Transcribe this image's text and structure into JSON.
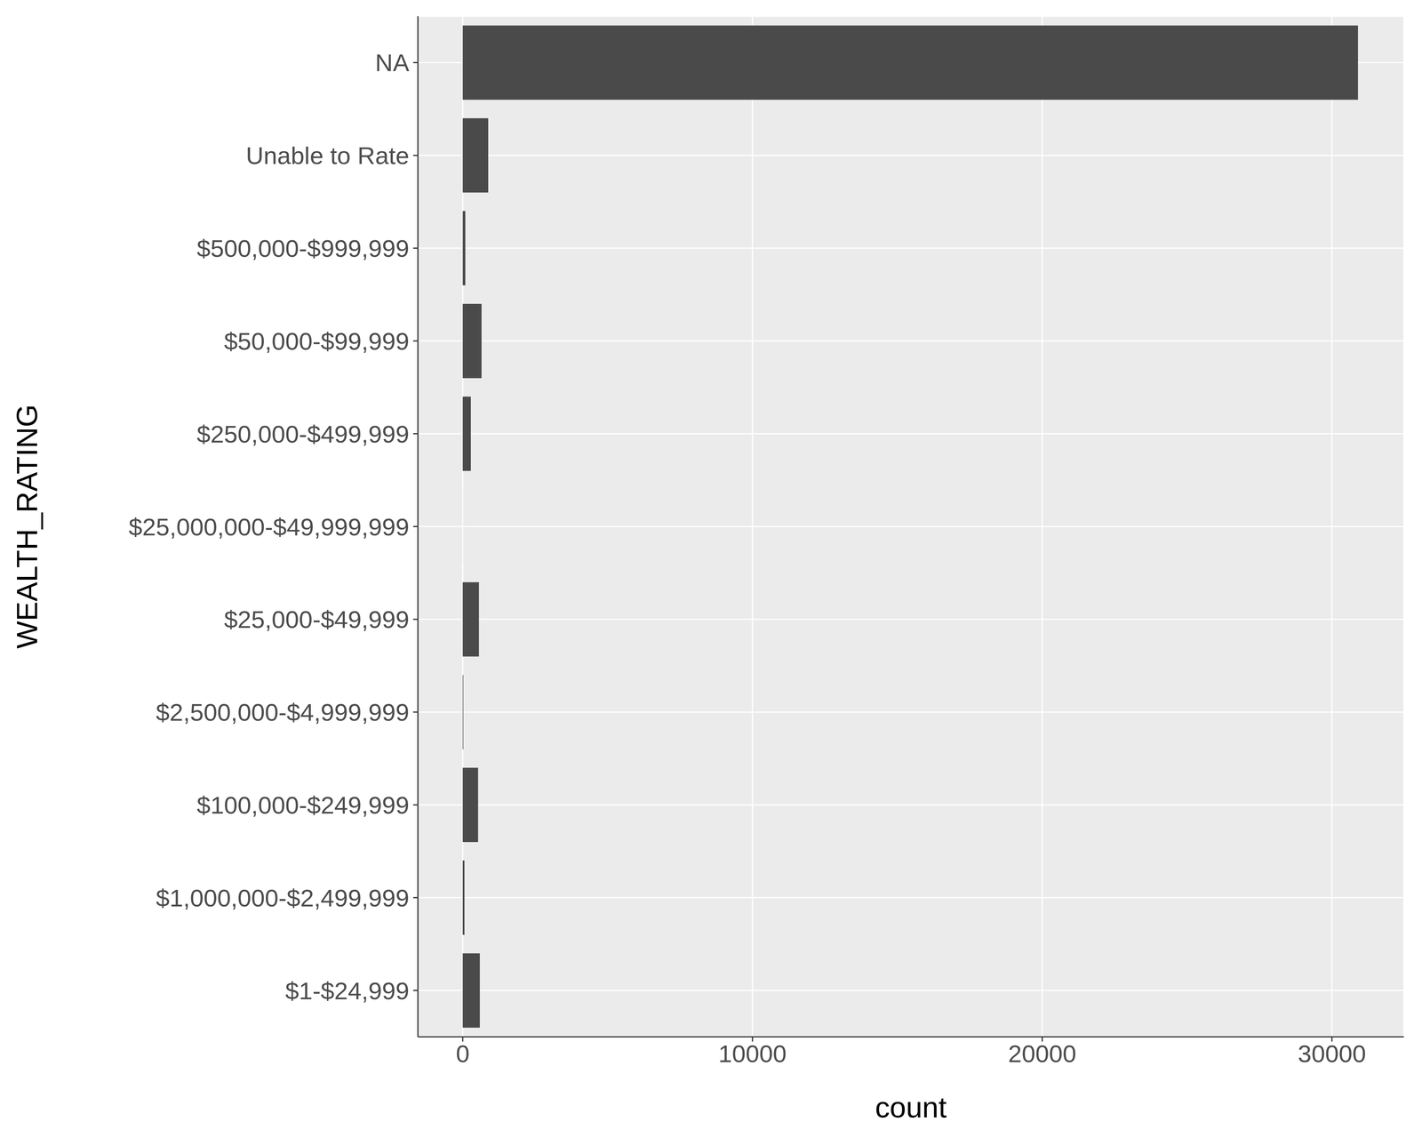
{
  "chart_data": {
    "type": "bar",
    "orientation": "horizontal",
    "xlabel": "count",
    "ylabel": "WEALTH_RATING",
    "categories": [
      "NA",
      "Unable to Rate",
      "$500,000-$999,999",
      "$50,000-$99,999",
      "$250,000-$499,999",
      "$25,000,000-$49,999,999",
      "$25,000-$49,999",
      "$2,500,000-$4,999,999",
      "$100,000-$249,999",
      "$1,000,000-$2,499,999",
      "$1-$24,999"
    ],
    "values": [
      30900,
      880,
      90,
      650,
      280,
      1,
      560,
      20,
      530,
      60,
      590
    ],
    "color": "#4a4a4a",
    "xlim": [
      -1547,
      32482
    ],
    "xticks": [
      0,
      10000,
      20000,
      30000
    ],
    "grid": true
  }
}
